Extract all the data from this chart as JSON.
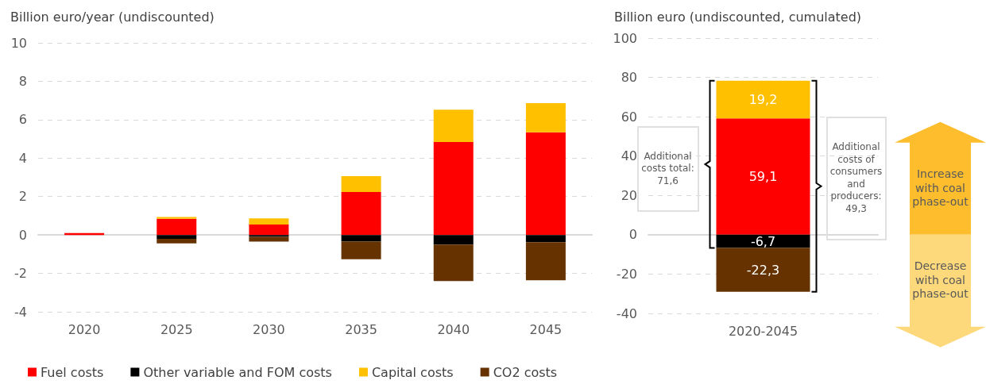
{
  "chart_data": [
    {
      "type": "bar",
      "ylabel": "Billion euro/year (undiscounted)",
      "categories": [
        "2020",
        "2025",
        "2030",
        "2035",
        "2040",
        "2045"
      ],
      "stacked": true,
      "series": [
        {
          "name": "Fuel costs",
          "color": "#ff0000",
          "values": [
            0.1,
            0.84,
            0.54,
            2.24,
            4.84,
            5.34
          ]
        },
        {
          "name": "Other variable and FOM costs",
          "color": "#000000",
          "values": [
            0,
            -0.2,
            -0.1,
            -0.34,
            -0.5,
            -0.38
          ]
        },
        {
          "name": "Capital costs",
          "color": "#ffc000",
          "values": [
            0,
            0.1,
            0.32,
            0.82,
            1.68,
            1.52
          ]
        },
        {
          "name": "CO2 costs",
          "color": "#663300",
          "values": [
            0,
            -0.24,
            -0.24,
            -0.92,
            -1.9,
            -1.98
          ]
        }
      ],
      "ylim": [
        -4,
        10
      ],
      "yticks": [
        -4,
        -2,
        0,
        2,
        4,
        6,
        8,
        10
      ],
      "grid": "y",
      "legend": "bottom"
    },
    {
      "type": "bar",
      "ylabel": "Billion euro (undiscounted, cumulated)",
      "categories": [
        "2020-2045"
      ],
      "stacked": true,
      "series": [
        {
          "color": "#ff0000",
          "values": [
            59.1
          ],
          "value_labels": [
            "59,1"
          ]
        },
        {
          "color": "#000000",
          "values": [
            -6.7
          ],
          "value_labels": [
            "-6,7"
          ]
        },
        {
          "color": "#ffc000",
          "values": [
            19.2
          ],
          "value_labels": [
            "19,2"
          ]
        },
        {
          "color": "#663300",
          "values": [
            -22.3
          ],
          "value_labels": [
            "-22,3"
          ]
        }
      ],
      "ylim": [
        -40,
        100
      ],
      "yticks": [
        -40,
        -20,
        0,
        20,
        40,
        60,
        80,
        100
      ],
      "grid": "y",
      "annotations": [
        "Additional costs total: 71,6",
        "Additional costs of consumers and producers: 49,3",
        "Increase with coal phase-out",
        "Decrease with coal phase-out"
      ]
    }
  ]
}
